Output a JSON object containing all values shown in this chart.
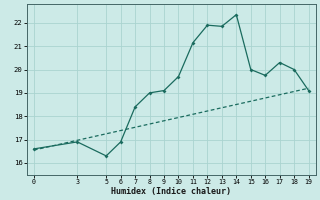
{
  "xlabel": "Humidex (Indice chaleur)",
  "ylabel": "",
  "bg_color": "#cceae7",
  "grid_color": "#aad4d0",
  "line_color": "#1a6b5e",
  "xlim": [
    -0.5,
    19.5
  ],
  "ylim": [
    15.5,
    22.8
  ],
  "xticks": [
    0,
    3,
    5,
    6,
    7,
    8,
    9,
    10,
    11,
    12,
    13,
    14,
    15,
    16,
    17,
    18,
    19
  ],
  "yticks": [
    16,
    17,
    18,
    19,
    20,
    21,
    22
  ],
  "curve_x": [
    0,
    3,
    5,
    6,
    7,
    8,
    9,
    10,
    11,
    12,
    13,
    14,
    15,
    16,
    17,
    18,
    19
  ],
  "curve_y": [
    16.6,
    16.9,
    16.3,
    16.9,
    18.4,
    19.0,
    19.1,
    19.7,
    21.15,
    21.9,
    21.85,
    22.35,
    20.0,
    19.75,
    20.3,
    20.0,
    19.1
  ],
  "trend_x": [
    0,
    19
  ],
  "trend_y": [
    16.55,
    19.2
  ]
}
